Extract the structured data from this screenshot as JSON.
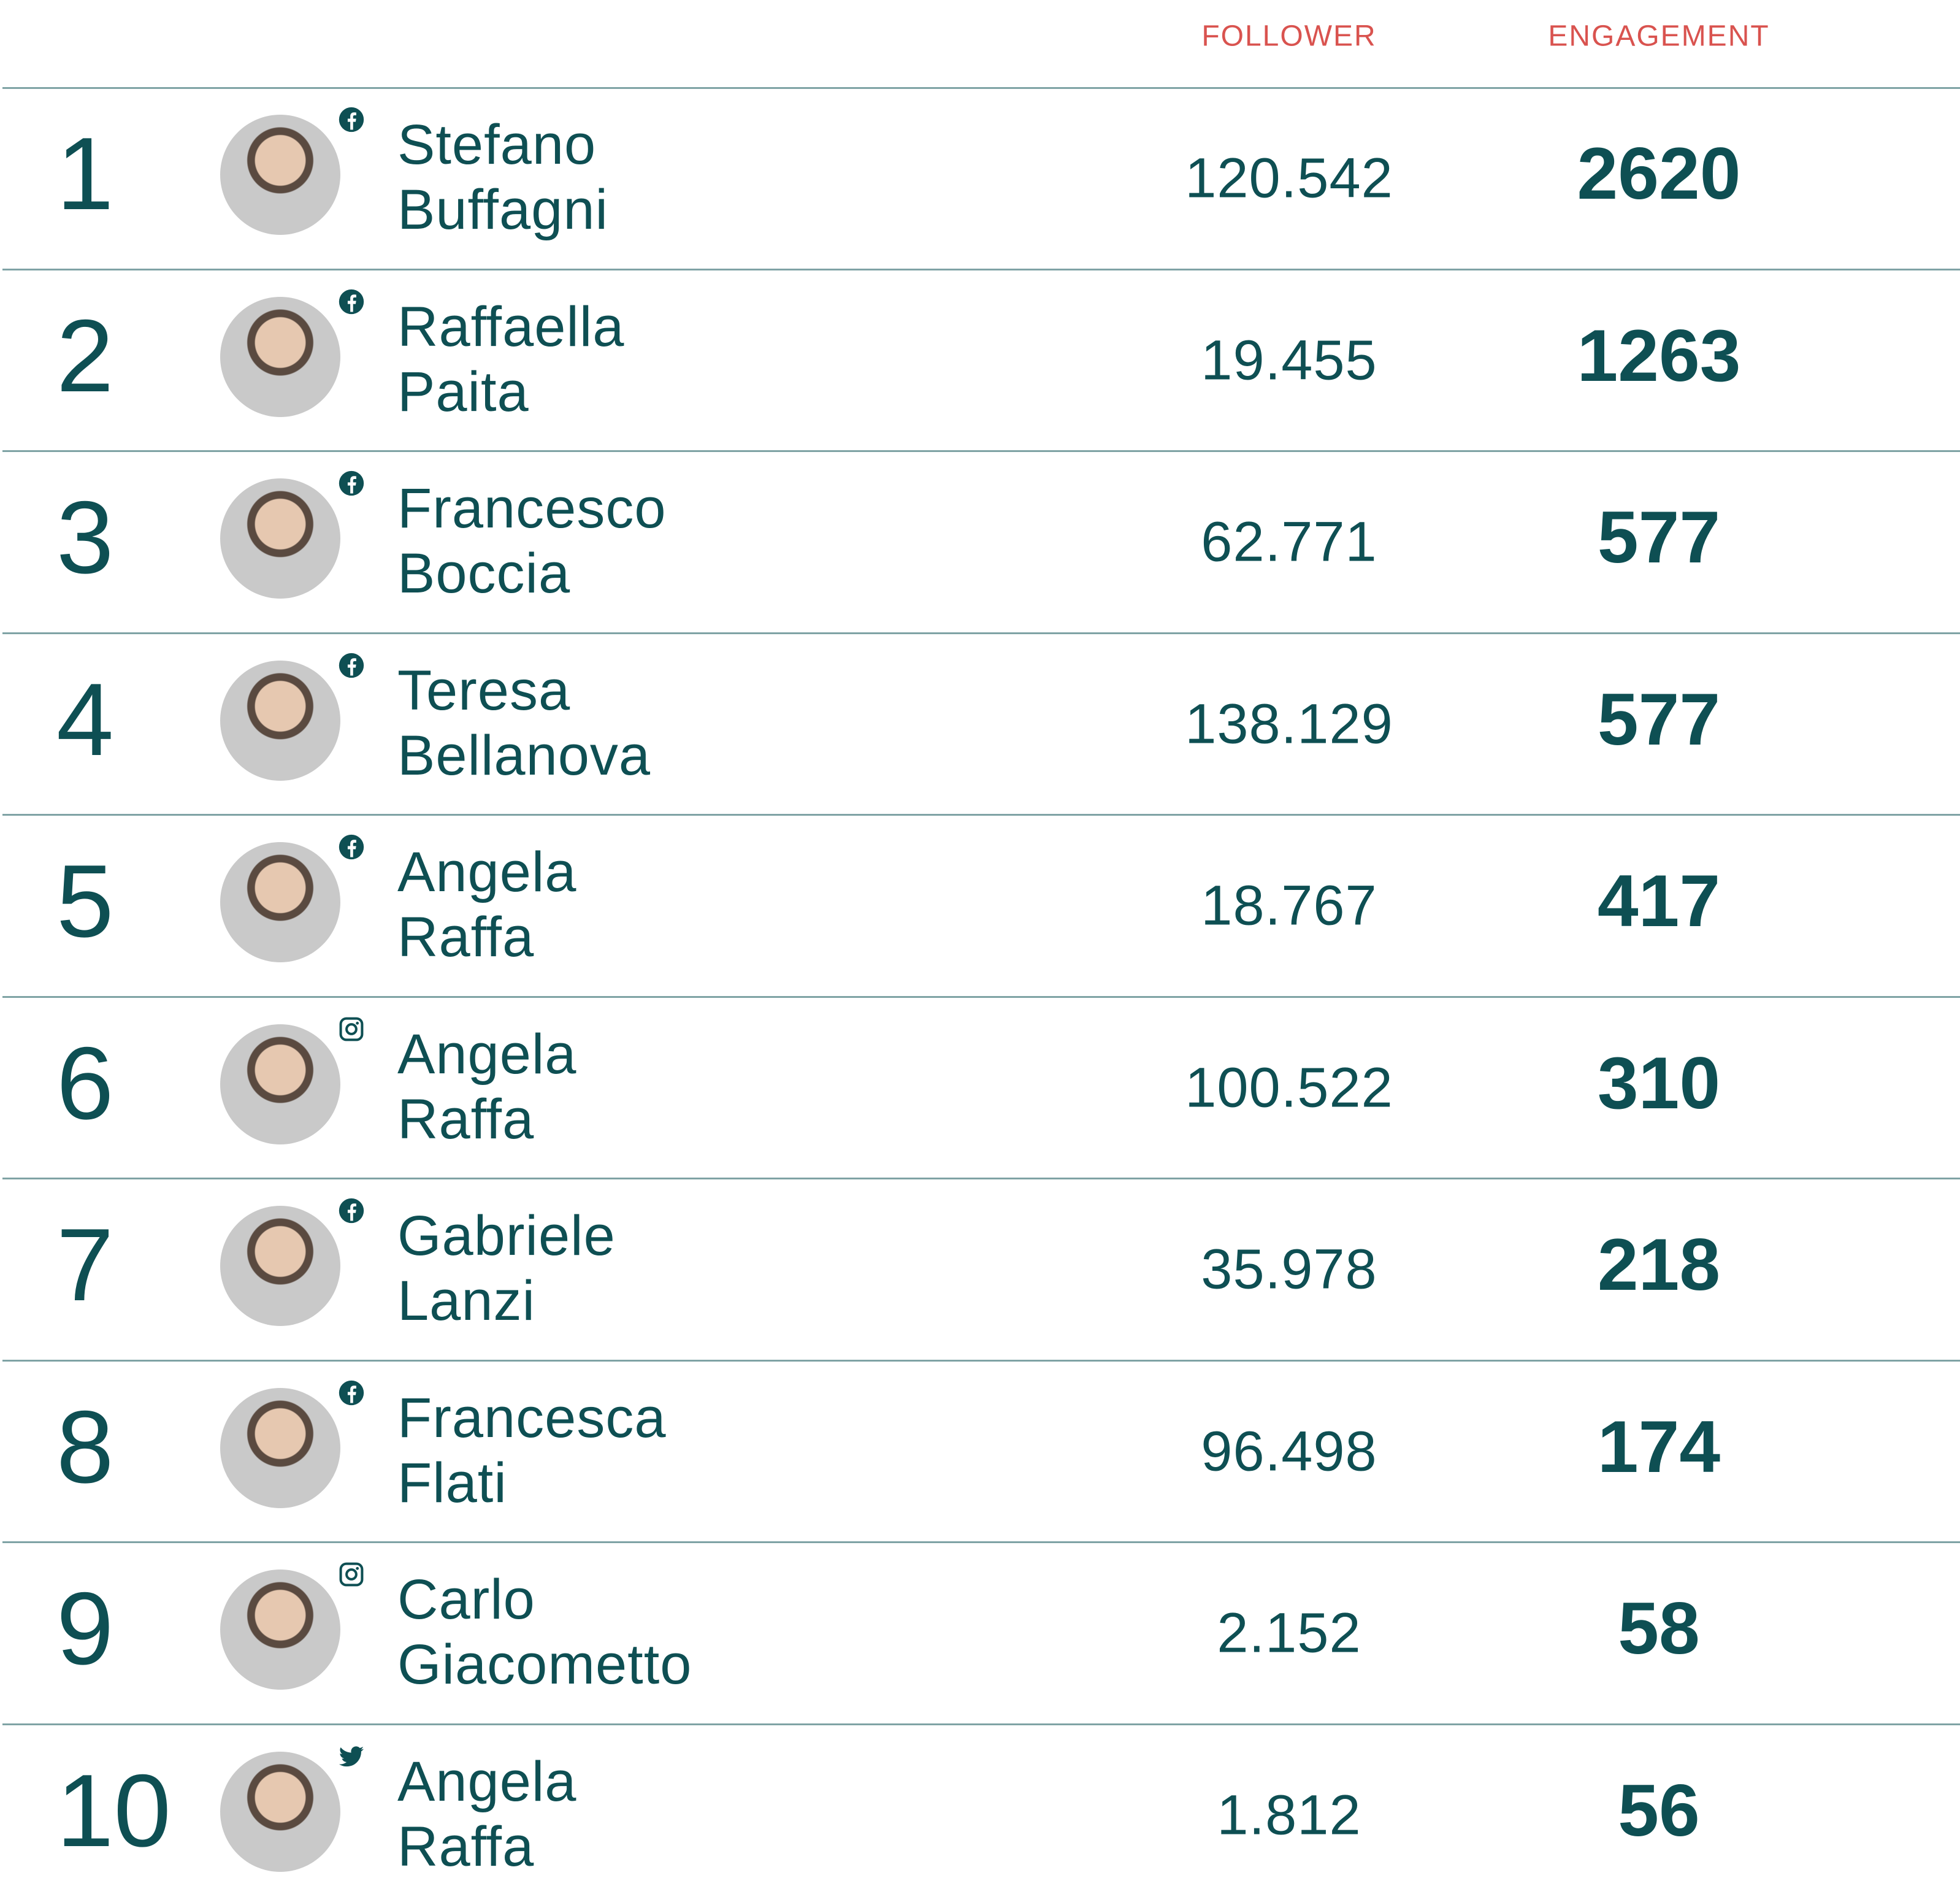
{
  "table": {
    "header": [
      "FOLLOWER",
      "ENGAGEMENT"
    ],
    "rows": [
      {
        "rank": 1,
        "first": "Stefano",
        "last": "Buffagni",
        "follower": "120.542",
        "engagement": 2620
      },
      {
        "rank": 2,
        "first": "Raffaella",
        "last": "Paita",
        "follower": "19.455",
        "engagement": 1263
      },
      {
        "rank": 3,
        "first": "Francesco",
        "last": "Boccia",
        "follower": "62.771",
        "engagement": 577
      },
      {
        "rank": 4,
        "first": "Teresa",
        "last": "Bellanova",
        "follower": "138.129",
        "engagement": 577
      },
      {
        "rank": 5,
        "first": "Angela",
        "last": "Raffa",
        "follower": "18.767",
        "engagement": 417
      },
      {
        "rank": 6,
        "first": "Angela",
        "last": "Raffa",
        "follower": "100.522",
        "engagement": 310
      },
      {
        "rank": 7,
        "first": "Gabriele",
        "last": "Lanzi",
        "follower": "35.978",
        "engagement": 218
      },
      {
        "rank": 8,
        "first": "Francesca",
        "last": "Flati",
        "follower": "96.498",
        "engagement": 174
      },
      {
        "rank": 9,
        "first": "Carlo",
        "last": "Giacometto",
        "follower": "2.152",
        "engagement": 58
      },
      {
        "rank": 10,
        "first": "Angela",
        "last": "Raffa",
        "follower": "1.812",
        "engagement": 56
      }
    ]
  }
}
